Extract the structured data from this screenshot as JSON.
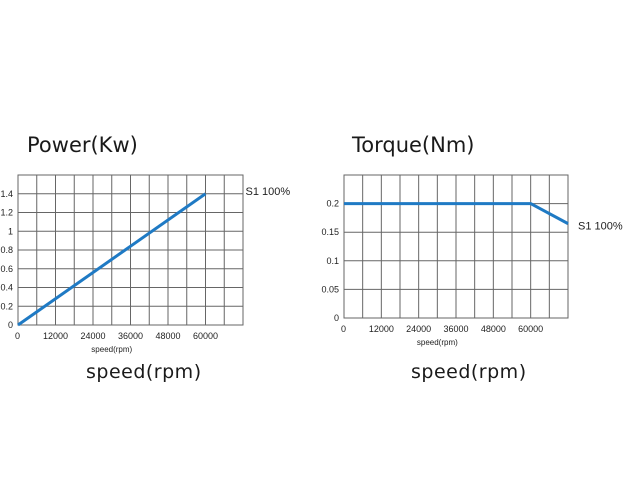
{
  "chart_data": [
    {
      "type": "line",
      "title": "Power(Kw)",
      "xlabel_small": "speed(rpm)",
      "xlabel_big": "speed(rpm)",
      "x_ticks": [
        "0",
        "12000",
        "24000",
        "36000",
        "48000",
        "60000"
      ],
      "y_ticks": [
        "0",
        "0.2",
        "0.4",
        "0.6",
        "0.8",
        "1",
        "1.2",
        "1.4"
      ],
      "xlim": [
        0,
        72000
      ],
      "ylim": [
        0,
        1.6
      ],
      "grid": true,
      "series": [
        {
          "name": "S1 100%",
          "x": [
            0,
            60000
          ],
          "y": [
            0,
            1.4
          ]
        }
      ],
      "line_color": "#1f7ac4"
    },
    {
      "type": "line",
      "title": "Torque(Nm)",
      "xlabel_small": "speed(rpm)",
      "xlabel_big": "speed(rpm)",
      "x_ticks": [
        "0",
        "12000",
        "24000",
        "36000",
        "48000",
        "60000"
      ],
      "y_ticks": [
        "0",
        "0.05",
        "0.1",
        "0.15",
        "0.2"
      ],
      "xlim": [
        0,
        72000
      ],
      "ylim": [
        0,
        0.25
      ],
      "grid": true,
      "series": [
        {
          "name": "S1 100%",
          "x": [
            0,
            60000,
            72000
          ],
          "y": [
            0.2,
            0.2,
            0.165
          ]
        }
      ],
      "line_color": "#1f7ac4"
    }
  ]
}
